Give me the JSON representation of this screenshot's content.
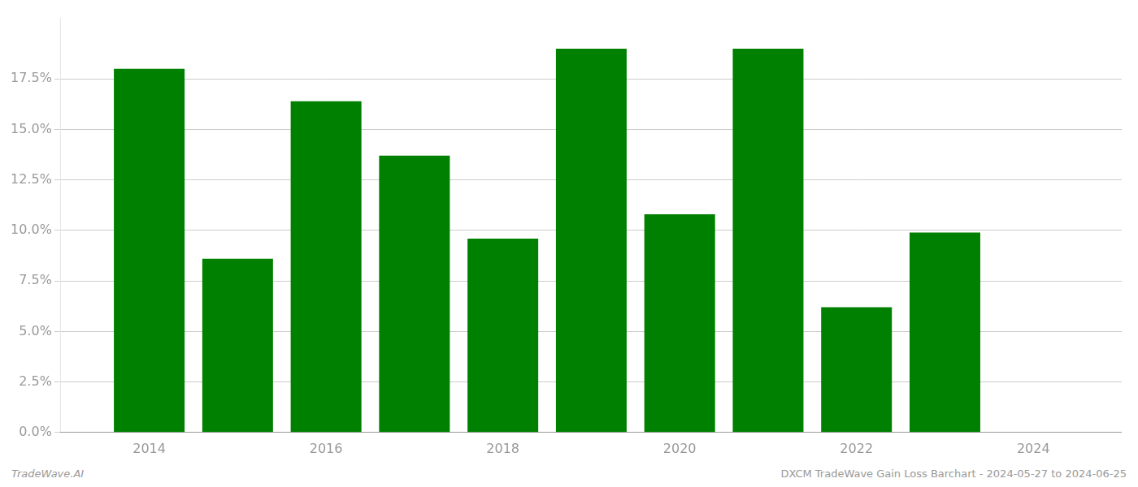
{
  "chart_data": {
    "type": "bar",
    "x": [
      2014,
      2015,
      2016,
      2017,
      2018,
      2019,
      2020,
      2021,
      2022,
      2023
    ],
    "values": [
      0.18,
      0.086,
      0.164,
      0.137,
      0.096,
      0.19,
      0.108,
      0.19,
      0.062,
      0.099
    ],
    "color": "#008000",
    "xlim": [
      2013.0,
      2025.0
    ],
    "xticks": [
      2014,
      2016,
      2018,
      2020,
      2022,
      2024
    ],
    "ylim": [
      0.0,
      0.205
    ],
    "yticks": [
      {
        "value": 0.0,
        "label": "0.0%"
      },
      {
        "value": 0.025,
        "label": "2.5%"
      },
      {
        "value": 0.05,
        "label": "5.0%"
      },
      {
        "value": 0.075,
        "label": "7.5%"
      },
      {
        "value": 0.1,
        "label": "10.0%"
      },
      {
        "value": 0.125,
        "label": "12.5%"
      },
      {
        "value": 0.15,
        "label": "15.0%"
      },
      {
        "value": 0.175,
        "label": "17.5%"
      }
    ],
    "grid": "y",
    "annotations": [
      "TradeWave.AI",
      "DXCM TradeWave Gain Loss Barchart - 2024-05-27 to 2024-06-25"
    ]
  }
}
